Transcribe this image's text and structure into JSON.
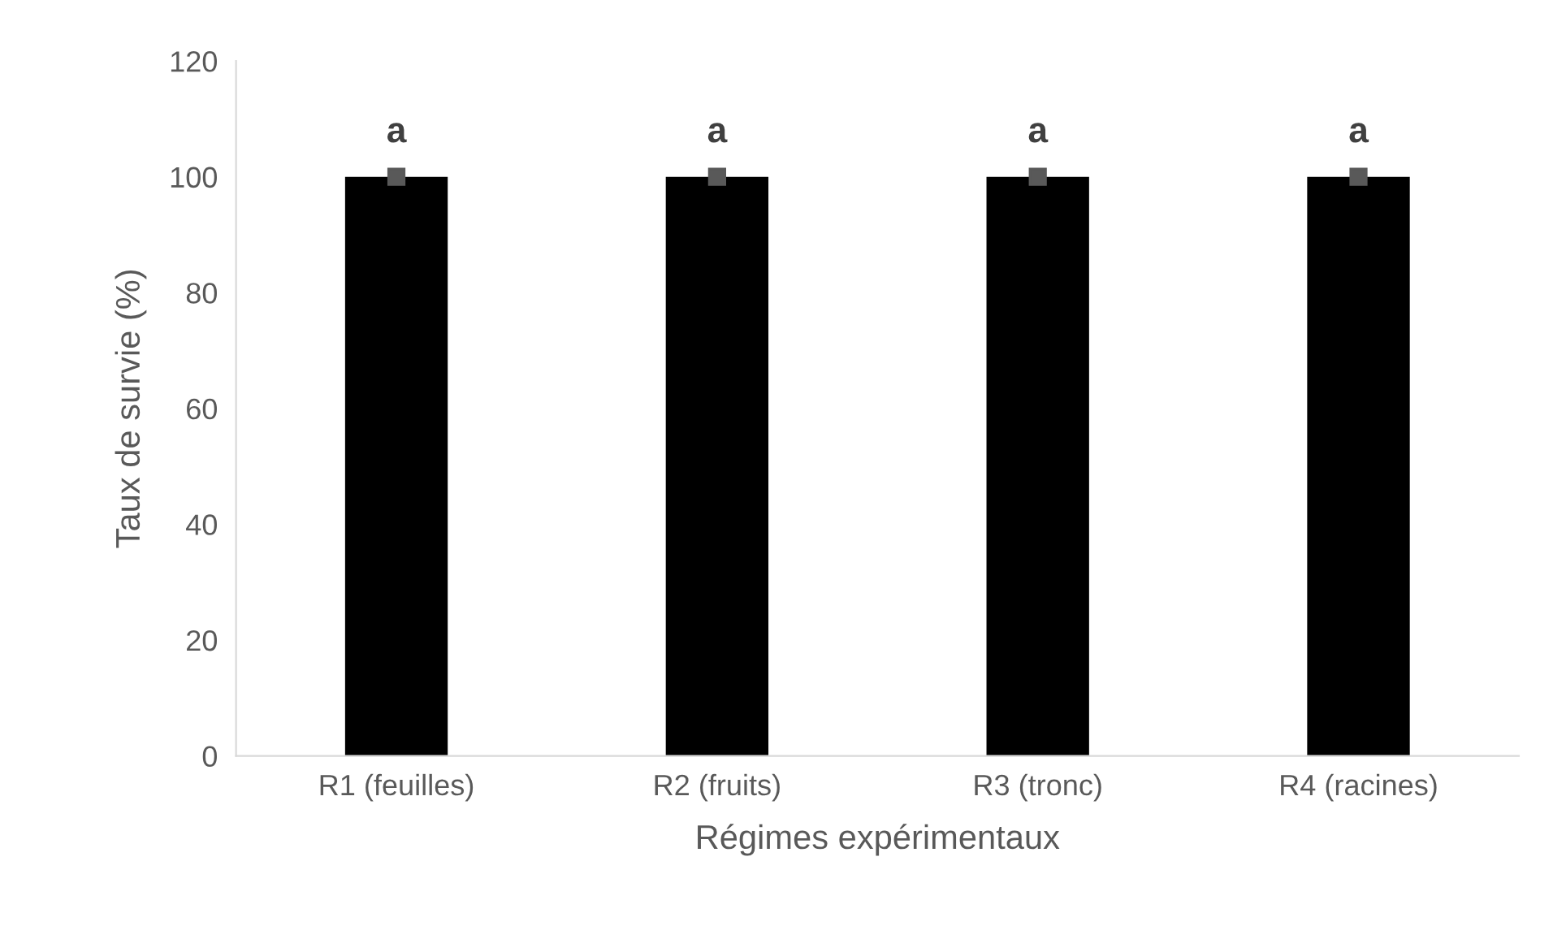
{
  "chart_data": {
    "type": "bar",
    "xlabel": "Régimes expérimentaux",
    "ylabel": "Taux de survie (%)",
    "categories": [
      "R1 (feuilles)",
      "R2 (fruits)",
      "R3 (tronc)",
      "R4 (racines)"
    ],
    "series": [
      {
        "color": "#000000",
        "values": [
          100,
          100,
          100,
          100
        ]
      },
      {
        "type": "scatter",
        "color": "#595959",
        "x": [
          "R1 (feuilles)",
          "R2 (fruits)",
          "R3 (tronc)",
          "R4 (racines)"
        ],
        "values": [
          100,
          100,
          100,
          100
        ]
      }
    ],
    "marker": "square",
    "annotations": [
      {
        "text": "a",
        "x": "R1 (feuilles)",
        "y": 100
      },
      {
        "text": "a",
        "x": "R2 (fruits)",
        "y": 100
      },
      {
        "text": "a",
        "x": "R3 (tronc)",
        "y": 100
      },
      {
        "text": "a",
        "x": "R4 (racines)",
        "y": 100
      }
    ],
    "ylim": [
      0,
      120
    ],
    "yticks": [
      0,
      20,
      40,
      60,
      80,
      100,
      120
    ],
    "grid": false,
    "legend": false
  }
}
